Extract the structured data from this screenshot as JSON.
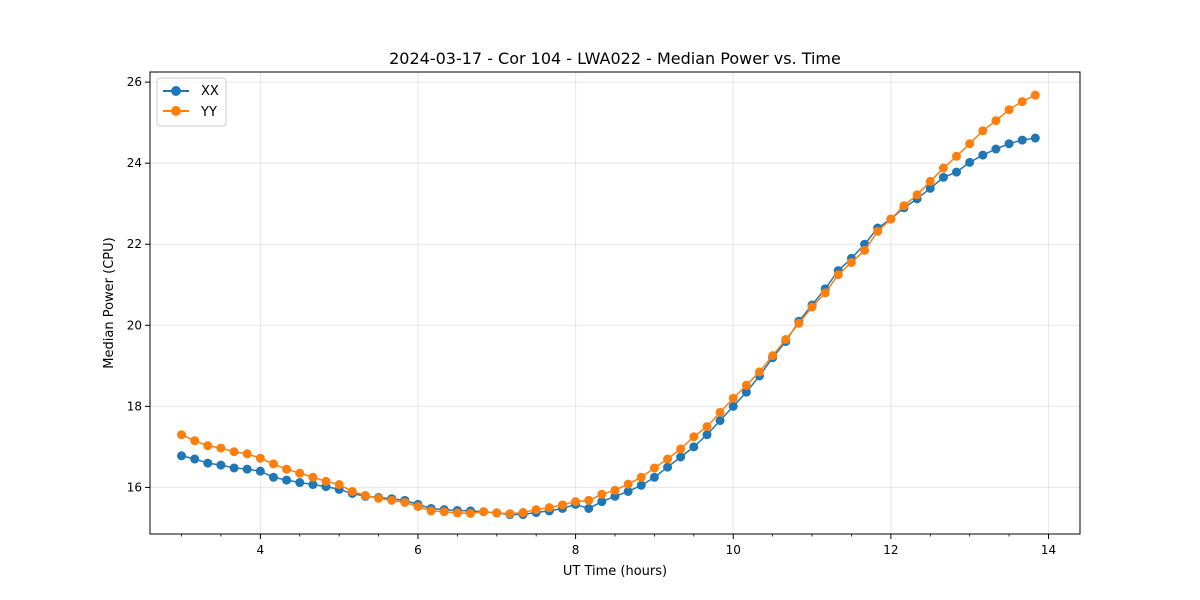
{
  "chart_data": {
    "type": "line",
    "title": "2024-03-17 - Cor 104 - LWA022 - Median Power vs. Time",
    "xlabel": "UT Time (hours)",
    "ylabel": "Median Power (CPU)",
    "xlim": [
      2.6,
      14.4
    ],
    "ylim": [
      14.85,
      26.25
    ],
    "x_ticks": [
      4,
      6,
      8,
      10,
      12,
      14
    ],
    "x_tick_labels": [
      "4",
      "6",
      "8",
      "10",
      "12",
      "14"
    ],
    "y_ticks": [
      16,
      18,
      20,
      22,
      24,
      26
    ],
    "y_tick_labels": [
      "16",
      "18",
      "20",
      "22",
      "24",
      "26"
    ],
    "grid": true,
    "legend_position": "top-left",
    "x": [
      3.0,
      3.167,
      3.333,
      3.5,
      3.667,
      3.833,
      4.0,
      4.167,
      4.333,
      4.5,
      4.667,
      4.833,
      5.0,
      5.167,
      5.333,
      5.5,
      5.667,
      5.833,
      6.0,
      6.167,
      6.333,
      6.5,
      6.667,
      6.833,
      7.0,
      7.167,
      7.333,
      7.5,
      7.667,
      7.833,
      8.0,
      8.167,
      8.333,
      8.5,
      8.667,
      8.833,
      9.0,
      9.167,
      9.333,
      9.5,
      9.667,
      9.833,
      10.0,
      10.167,
      10.333,
      10.5,
      10.667,
      10.833,
      11.0,
      11.167,
      11.333,
      11.5,
      11.667,
      11.833,
      12.0,
      12.167,
      12.333,
      12.5,
      12.667,
      12.833,
      13.0,
      13.167,
      13.333,
      13.5,
      13.667,
      13.833
    ],
    "series": [
      {
        "name": "XX",
        "color": "#1f77b4",
        "values": [
          16.78,
          16.7,
          16.6,
          16.55,
          16.48,
          16.45,
          16.4,
          16.25,
          16.18,
          16.12,
          16.07,
          16.02,
          15.95,
          15.85,
          15.78,
          15.75,
          15.72,
          15.68,
          15.58,
          15.48,
          15.45,
          15.43,
          15.42,
          15.4,
          15.37,
          15.33,
          15.33,
          15.38,
          15.42,
          15.48,
          15.58,
          15.48,
          15.65,
          15.78,
          15.9,
          16.05,
          16.25,
          16.5,
          16.75,
          17.0,
          17.3,
          17.65,
          18.0,
          18.35,
          18.75,
          19.2,
          19.6,
          20.1,
          20.5,
          20.9,
          21.35,
          21.65,
          22.0,
          22.4,
          22.62,
          22.9,
          23.12,
          23.38,
          23.65,
          23.78,
          24.02,
          24.2,
          24.35,
          24.48,
          24.57,
          24.62
        ]
      },
      {
        "name": "YY",
        "color": "#ff7f0e",
        "values": [
          17.3,
          17.15,
          17.03,
          16.97,
          16.88,
          16.83,
          16.72,
          16.58,
          16.45,
          16.35,
          16.25,
          16.15,
          16.07,
          15.9,
          15.8,
          15.73,
          15.68,
          15.63,
          15.53,
          15.42,
          15.4,
          15.37,
          15.36,
          15.4,
          15.37,
          15.35,
          15.38,
          15.45,
          15.5,
          15.57,
          15.65,
          15.68,
          15.83,
          15.93,
          16.08,
          16.25,
          16.48,
          16.7,
          16.95,
          17.25,
          17.5,
          17.85,
          18.2,
          18.52,
          18.85,
          19.25,
          19.65,
          20.05,
          20.45,
          20.8,
          21.25,
          21.55,
          21.85,
          22.32,
          22.62,
          22.95,
          23.22,
          23.55,
          23.88,
          24.17,
          24.48,
          24.8,
          25.05,
          25.32,
          25.52,
          25.68
        ]
      }
    ]
  }
}
